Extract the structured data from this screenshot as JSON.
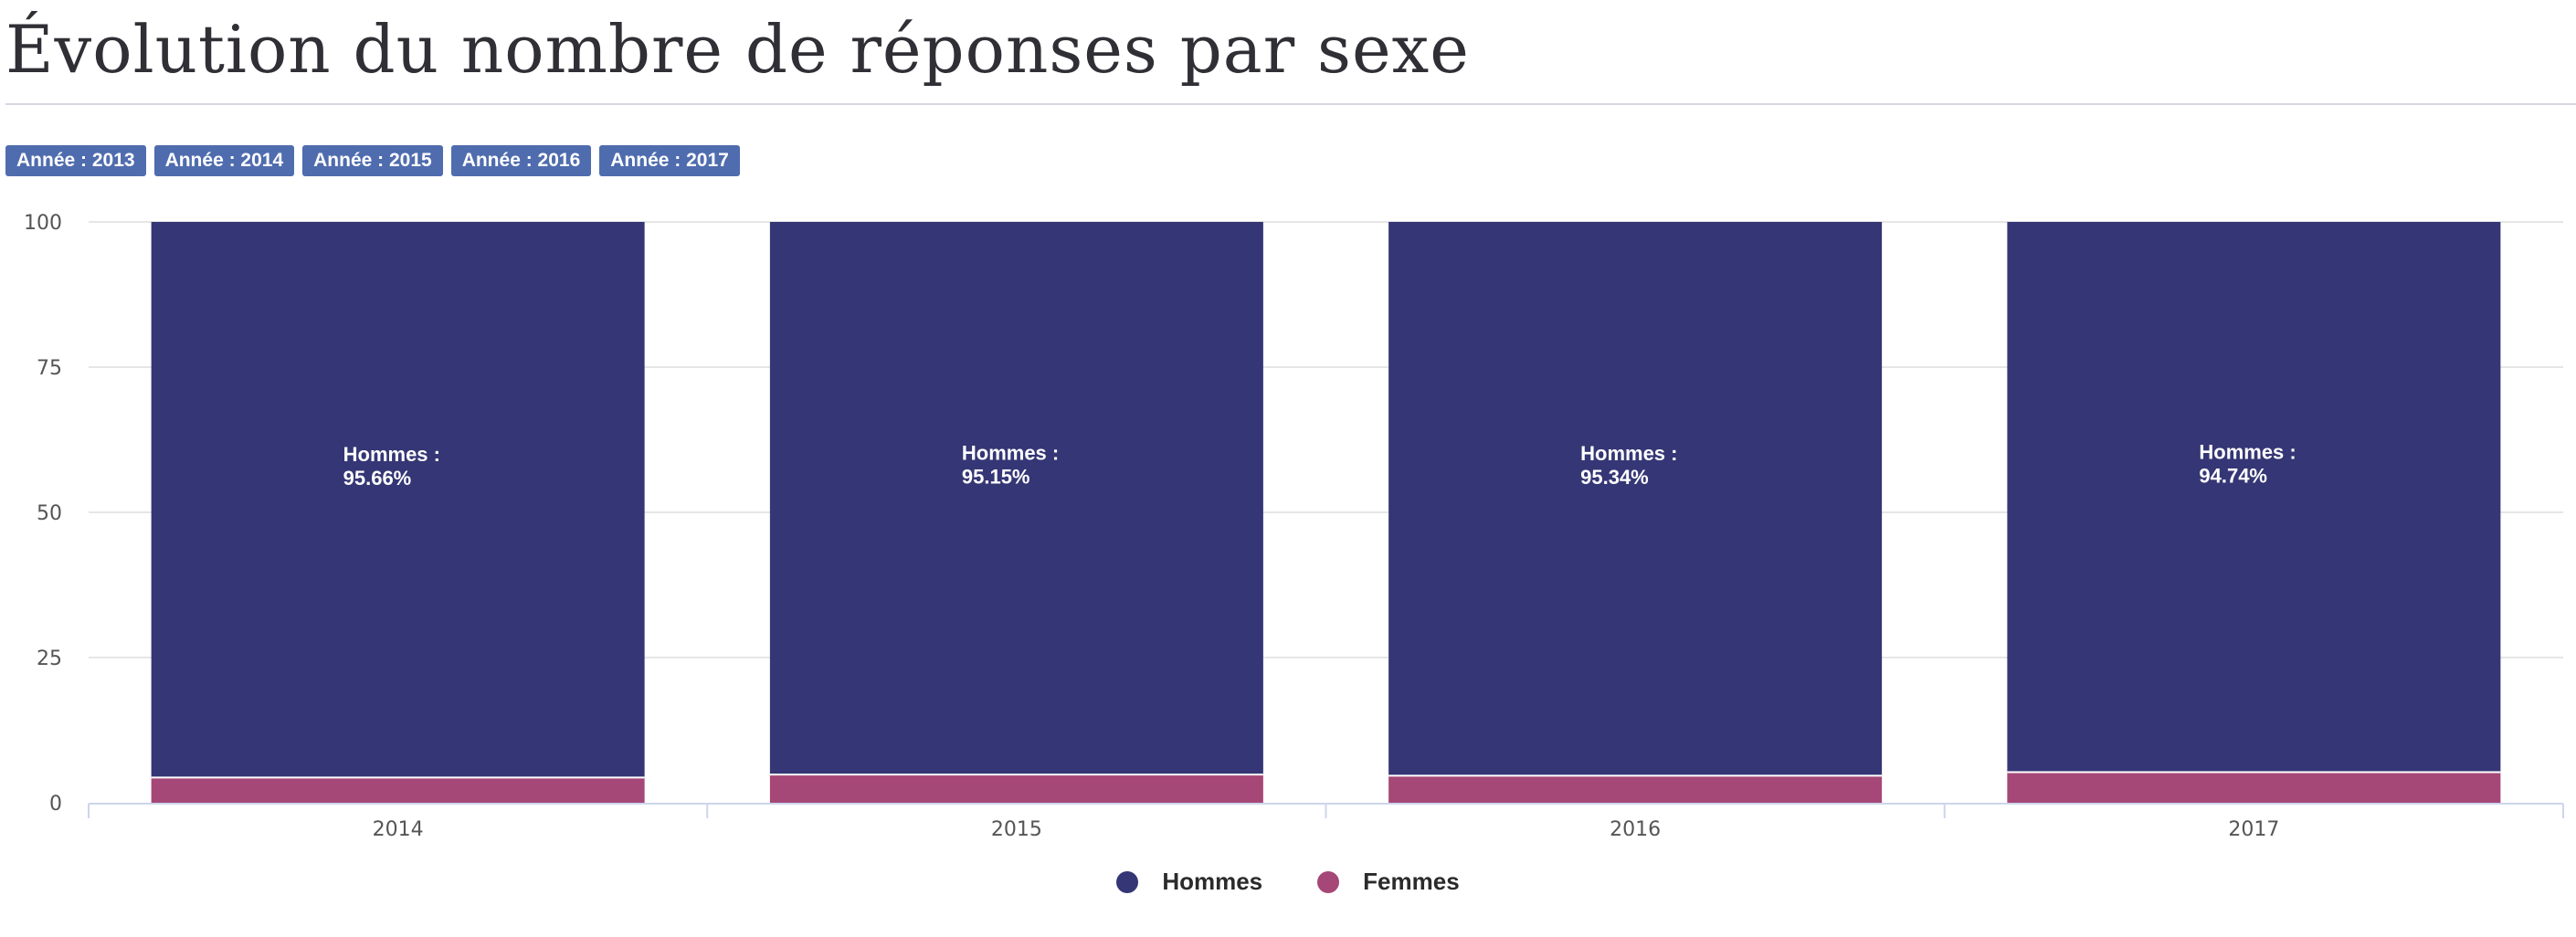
{
  "page": {
    "title": "Évolution du nombre de réponses par sexe"
  },
  "filters": [
    {
      "label": "Année : 2013"
    },
    {
      "label": "Année : 2014"
    },
    {
      "label": "Année : 2015"
    },
    {
      "label": "Année : 2016"
    },
    {
      "label": "Année : 2017"
    }
  ],
  "colors": {
    "hommes": "#353675",
    "femmes": "#a54777",
    "filter_bg": "#4f6cae",
    "grid": "#e6e6e6",
    "axis": "#ccd6eb",
    "tick_text": "#555555"
  },
  "legend": [
    {
      "name": "Hommes",
      "color": "#353675"
    },
    {
      "name": "Femmes",
      "color": "#a54777"
    }
  ],
  "chart_data": {
    "type": "bar",
    "stacked": true,
    "categories": [
      "2014",
      "2015",
      "2016",
      "2017"
    ],
    "series": [
      {
        "name": "Femmes",
        "values": [
          4.34,
          4.85,
          4.66,
          5.26
        ]
      },
      {
        "name": "Hommes",
        "values": [
          95.66,
          95.15,
          95.34,
          94.74
        ]
      }
    ],
    "data_labels": [
      {
        "line1": "Hommes :",
        "line2": "95.66%"
      },
      {
        "line1": "Hommes :",
        "line2": "95.15%"
      },
      {
        "line1": "Hommes :",
        "line2": "95.34%"
      },
      {
        "line1": "Hommes :",
        "line2": "94.74%"
      }
    ],
    "yticks": [
      0,
      25,
      50,
      75,
      100
    ],
    "ylim": [
      0,
      100
    ],
    "grid": true,
    "legend_position": "bottom-center",
    "title": "",
    "xlabel": "",
    "ylabel": ""
  }
}
